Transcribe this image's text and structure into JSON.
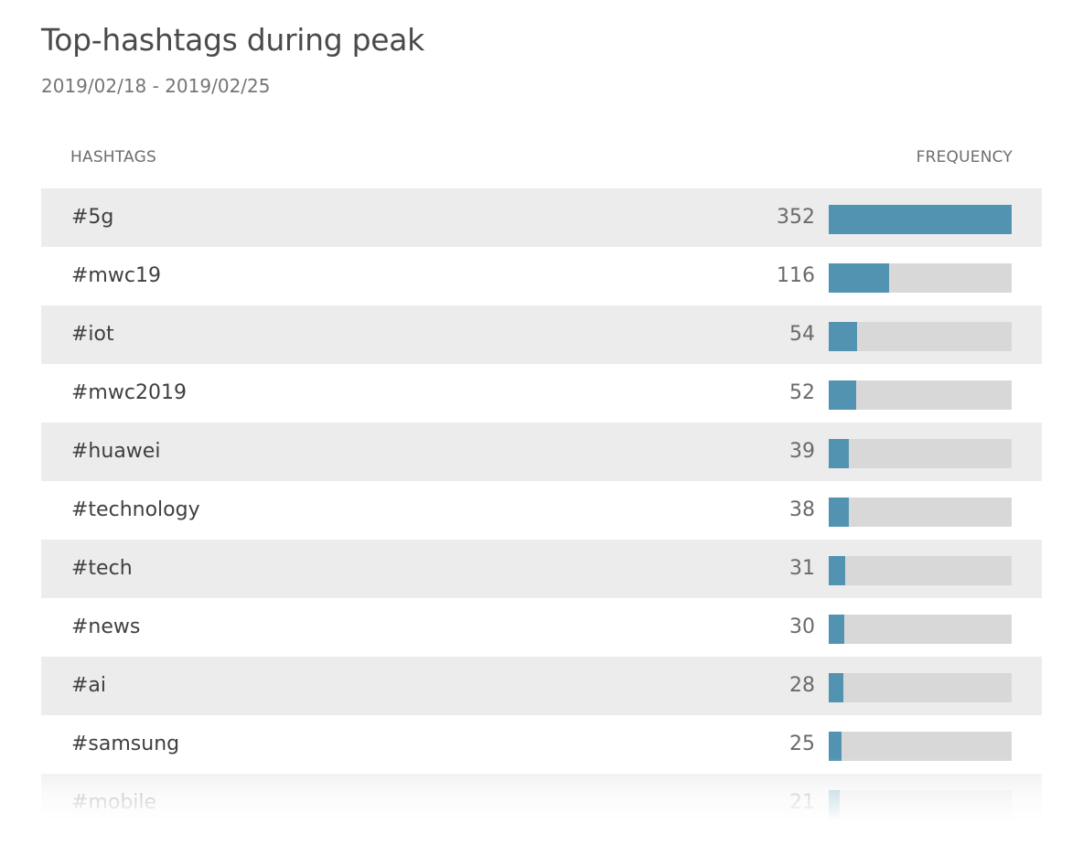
{
  "widget": {
    "title": "Top-hashtags during peak",
    "subtitle": "2019/02/18 - 2019/02/25"
  },
  "table": {
    "columns": {
      "hashtags": "HASHTAGS",
      "frequency": "FREQUENCY"
    },
    "max_frequency": 352,
    "rows": [
      {
        "tag": "#5g",
        "count": "352",
        "value": 352
      },
      {
        "tag": "#mwc19",
        "count": "116",
        "value": 116
      },
      {
        "tag": "#iot",
        "count": "54",
        "value": 54
      },
      {
        "tag": "#mwc2019",
        "count": "52",
        "value": 52
      },
      {
        "tag": "#huawei",
        "count": "39",
        "value": 39
      },
      {
        "tag": "#technology",
        "count": "38",
        "value": 38
      },
      {
        "tag": "#tech",
        "count": "31",
        "value": 31
      },
      {
        "tag": "#news",
        "count": "30",
        "value": 30
      },
      {
        "tag": "#ai",
        "count": "28",
        "value": 28
      },
      {
        "tag": "#samsung",
        "count": "25",
        "value": 25
      },
      {
        "tag": "#mobile",
        "count": "21",
        "value": 21
      }
    ]
  },
  "colors": {
    "bar_fill": "#5293b2",
    "bar_track": "#d8d8d8",
    "row_alt": "#ececec"
  }
}
